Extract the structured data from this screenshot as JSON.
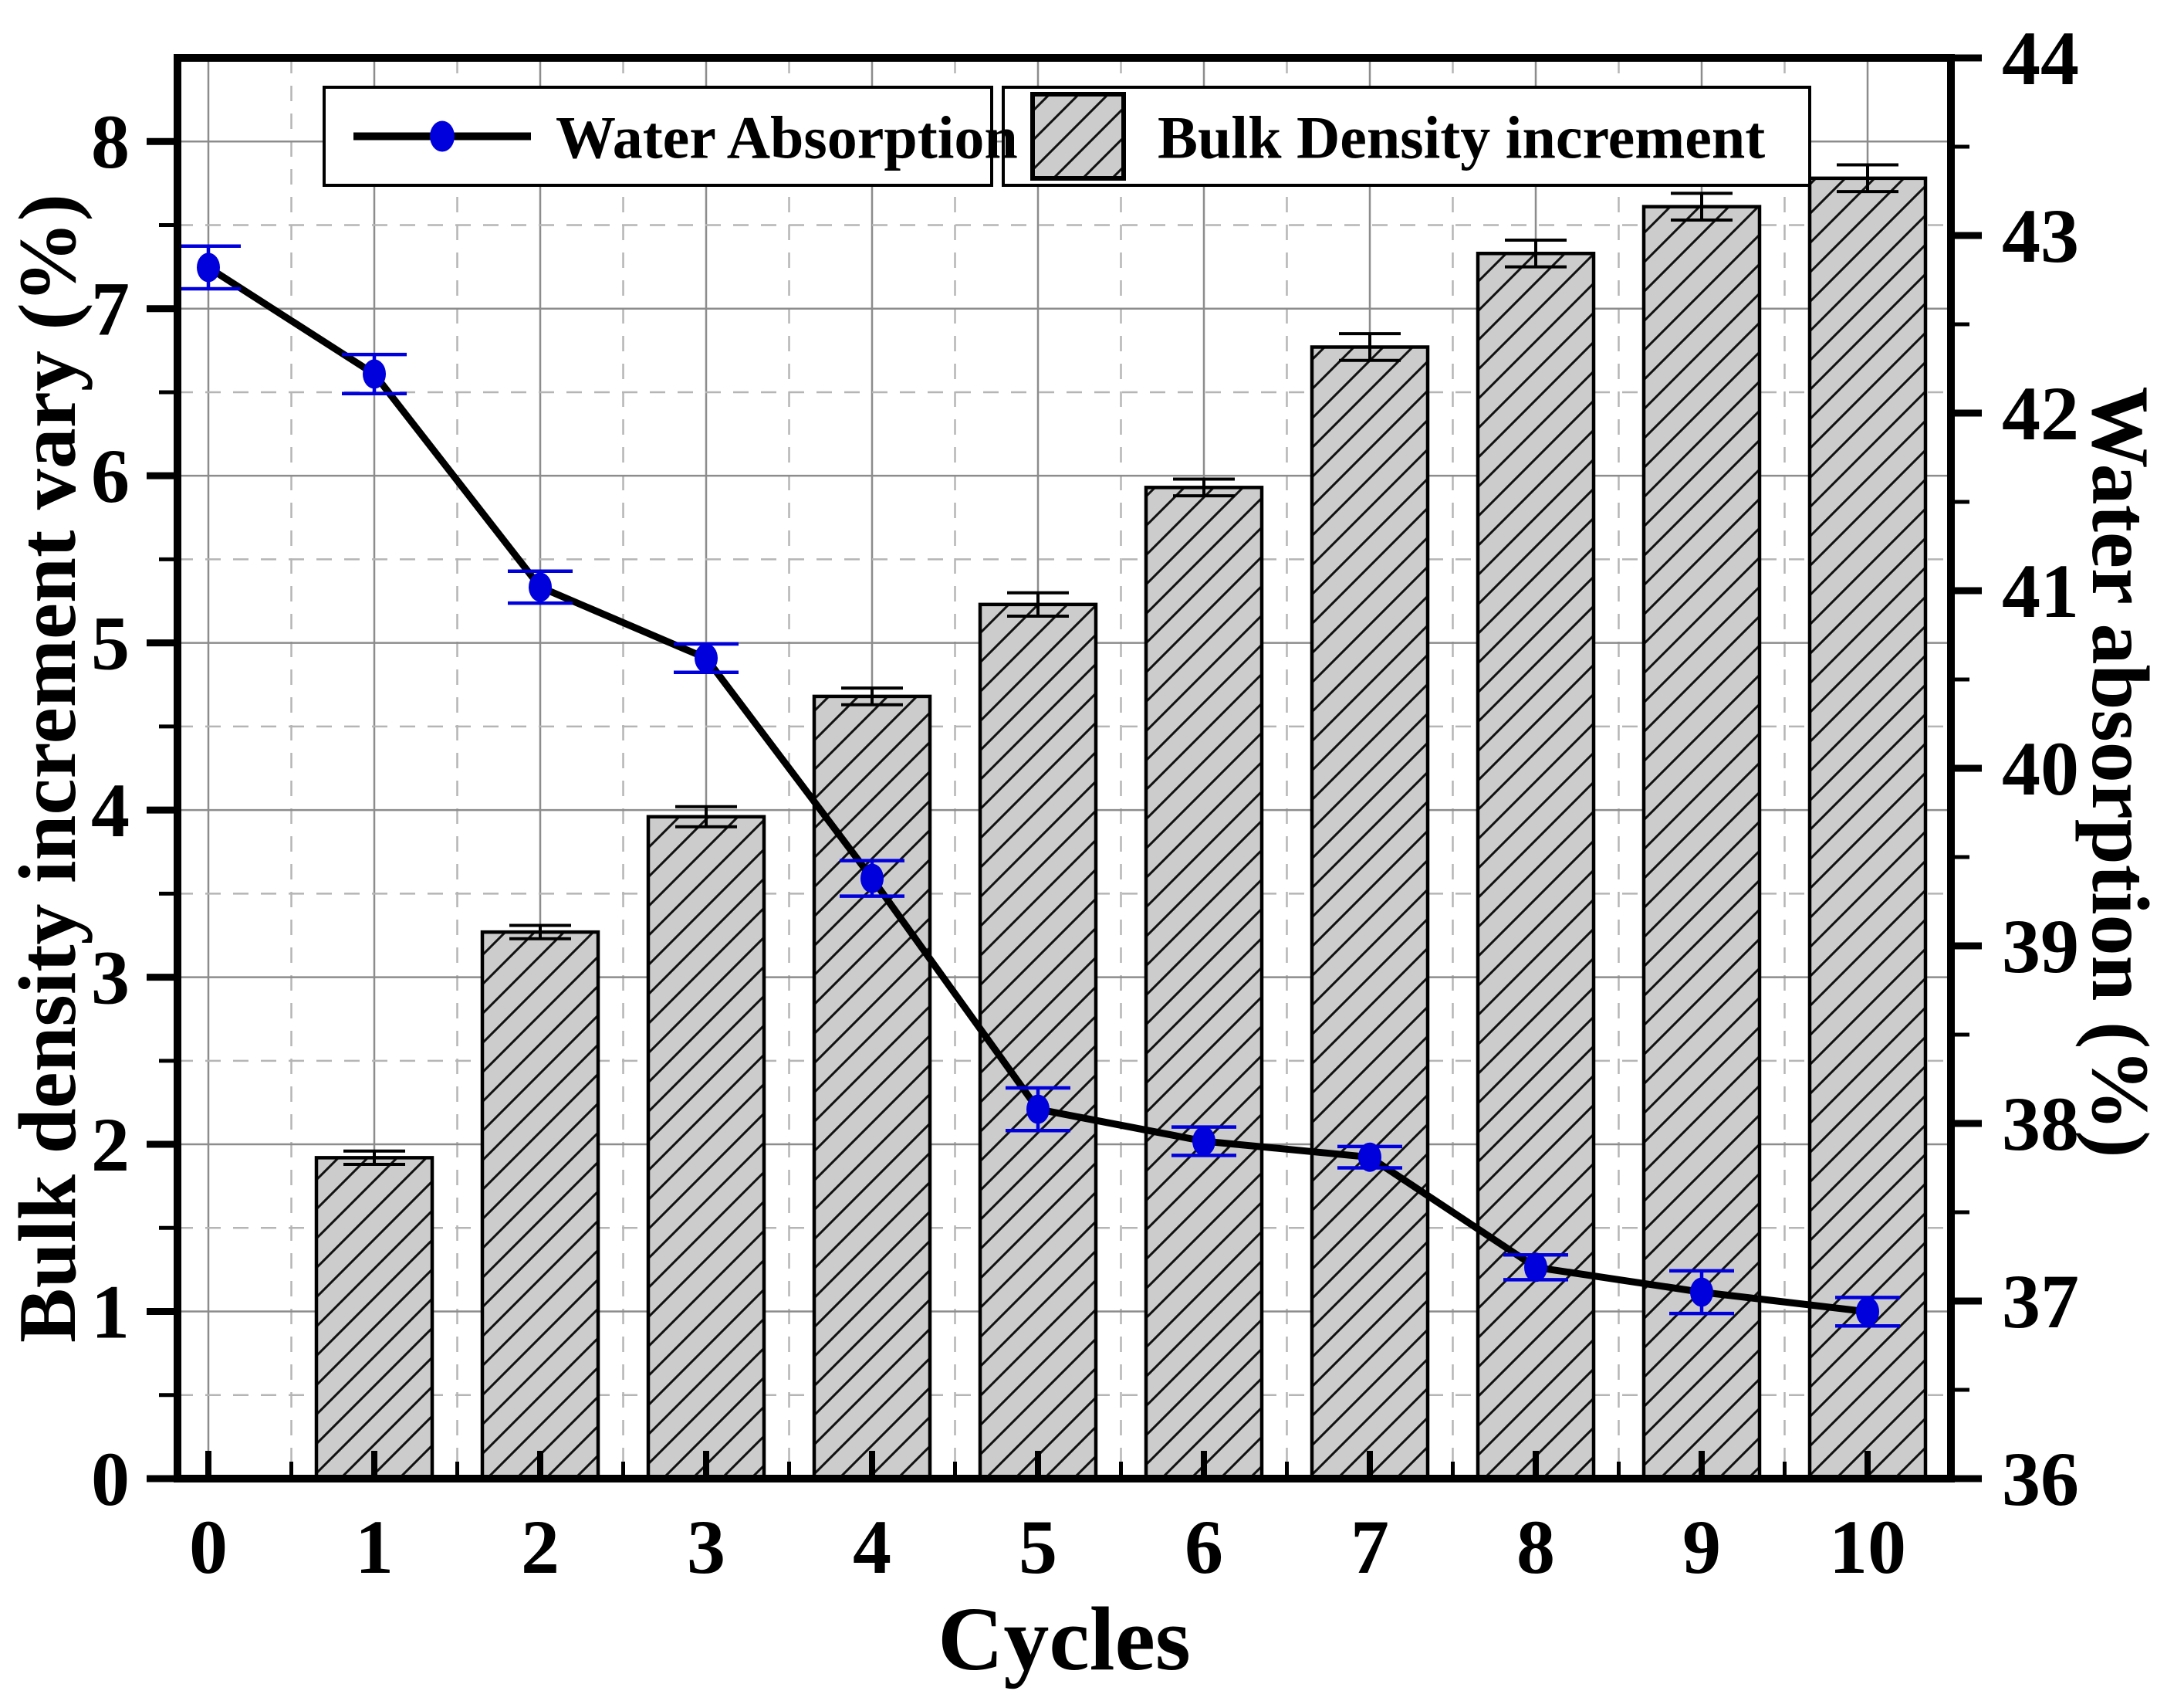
{
  "figure": {
    "xlabel": "Cycles",
    "ylabel_left": "Bulk density increment vary (%)",
    "ylabel_right": "Water absorption (%)",
    "legend": [
      {
        "label": "Water Absorption",
        "swatch": "line-with-dot-marker"
      },
      {
        "label": "Bulk Density increment",
        "swatch": "hatched-bar"
      }
    ]
  },
  "chart_data": {
    "type": "bar",
    "subtype": "bar+line dual axis",
    "categories": [
      0,
      1,
      2,
      3,
      4,
      5,
      6,
      7,
      8,
      9,
      10
    ],
    "series": [
      {
        "name": "Bulk Density increment",
        "type": "bar",
        "axis": "left",
        "values": [
          null,
          1.92,
          3.27,
          3.96,
          4.68,
          5.23,
          5.93,
          6.77,
          7.33,
          7.61,
          7.78
        ],
        "errors": [
          null,
          0.04,
          0.04,
          0.06,
          0.05,
          0.07,
          0.05,
          0.08,
          0.08,
          0.08,
          0.08
        ]
      },
      {
        "name": "Water Absorption",
        "type": "line",
        "axis": "right",
        "values": [
          42.82,
          42.22,
          41.02,
          40.62,
          39.38,
          38.08,
          37.9,
          37.81,
          37.19,
          37.05,
          36.94
        ],
        "errors": [
          0.12,
          0.11,
          0.09,
          0.08,
          0.1,
          0.12,
          0.08,
          0.06,
          0.07,
          0.12,
          0.08
        ]
      }
    ],
    "title": "",
    "xlabel": "Cycles",
    "ylabel_left": "Bulk density increment vary (%)",
    "ylabel_right": "Water absorption (%)",
    "left_axis_ticks": [
      0,
      1,
      2,
      3,
      4,
      5,
      6,
      7,
      8
    ],
    "left_axis_display_max": 8.5,
    "right_axis_ticks": [
      36,
      37,
      38,
      39,
      40,
      41,
      42,
      43,
      44
    ],
    "right_axis_range": [
      36,
      44
    ],
    "x_axis_ticks": [
      0,
      1,
      2,
      3,
      4,
      5,
      6,
      7,
      8,
      9,
      10
    ],
    "grid": "solid gray at integers, dashed light gray at half-integers, both directions",
    "legend_position": "top inside, two framed boxes"
  },
  "style": {
    "marker_color": "#0000dd",
    "line_color": "#000000",
    "bar_fill": "#cccccc",
    "bar_edge": "#000000",
    "bar_error_color": "#000000",
    "grid_solid_color": "#8c8c8c",
    "grid_dashed_color": "#b5b5b5",
    "frame_color": "#000000",
    "background": "#ffffff"
  }
}
